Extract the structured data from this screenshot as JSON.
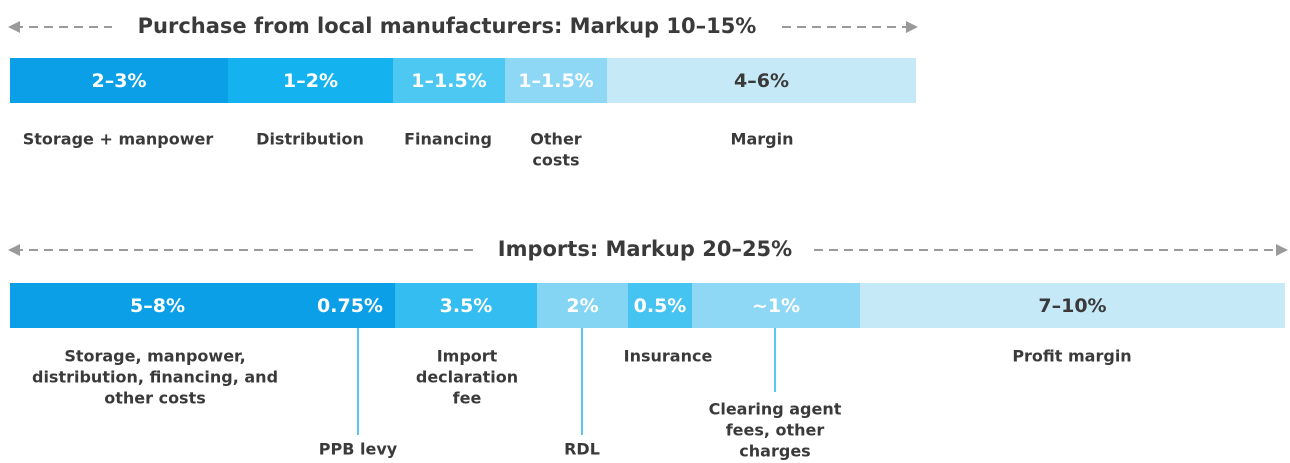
{
  "local": {
    "title": "Purchase from local manufacturers: Markup 10–15%",
    "segments": [
      {
        "value": "2–3%",
        "label": [
          "Storage + manpower"
        ]
      },
      {
        "value": "1–2%",
        "label": [
          "Distribution"
        ]
      },
      {
        "value": "1–1.5%",
        "label": [
          "Financing"
        ]
      },
      {
        "value": "1–1.5%",
        "label": [
          "Other",
          "costs"
        ]
      },
      {
        "value": "4–6%",
        "label": [
          "Margin"
        ]
      }
    ]
  },
  "imports": {
    "title": "Imports: Markup 20–25%",
    "segments": [
      {
        "value": "5–8%",
        "label": [
          "Storage, manpower,",
          "distribution, financing, and",
          "other costs"
        ]
      },
      {
        "value": "0.75%",
        "label": [
          "PPB levy"
        ]
      },
      {
        "value": "3.5%",
        "label": [
          "Import",
          "declaration",
          "fee"
        ]
      },
      {
        "value": "2%",
        "label": [
          "RDL"
        ]
      },
      {
        "value": "0.5%",
        "label": [
          "Insurance"
        ]
      },
      {
        "value": "~1%",
        "label": [
          "Clearing agent",
          "fees, other",
          "charges"
        ]
      },
      {
        "value": "7–10%",
        "label": [
          "Profit margin"
        ]
      }
    ]
  }
}
